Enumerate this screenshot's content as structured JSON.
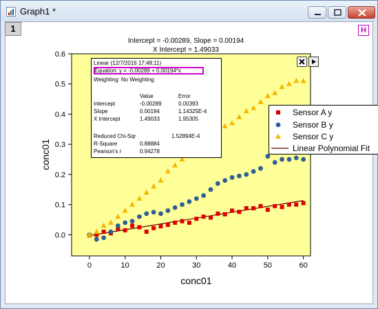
{
  "window": {
    "title": "Graph1 *",
    "layer_number": "1",
    "h_button": "H"
  },
  "stats_table": {
    "header": "Linear (12/7/2016 17:48:11)",
    "equation": "Equation: y = -0.00289 + 0.00194*x",
    "weighting": "Weighting: No Weighting",
    "columns": [
      "Value",
      "Error"
    ],
    "rows": [
      {
        "name": "Intercept",
        "value": "-0.00289",
        "error": "0.00393"
      },
      {
        "name": "Slope",
        "value": "0.00194",
        "error": "1.14325E-4"
      },
      {
        "name": "X Intercept",
        "value": "1.49033",
        "error": "1.95305"
      }
    ],
    "stats": [
      {
        "name": "Reduced Chi-Sqr",
        "value": "1.52894E-4"
      },
      {
        "name": "R-Square",
        "value": "0.88884"
      },
      {
        "name": "Pearson's r",
        "value": "0.94278"
      }
    ]
  },
  "legend": {
    "items": [
      "Sensor A y",
      "Sensor B y",
      "Sensor C y",
      "Linear Polynomial Fit"
    ]
  },
  "colors": {
    "plot_bg": "#ffff99",
    "sensor_a": "#dd0000",
    "sensor_b": "#2e5e96",
    "sensor_c": "#f5b800",
    "fit_line": "#660000"
  },
  "chart_data": {
    "type": "scatter",
    "title": "Intercept = -0.00289, Slope = 0.00194",
    "subtitle": "X Intercept = 1.49033",
    "xlabel": "conc01",
    "ylabel": "conc01",
    "xlim": [
      -5,
      62
    ],
    "ylim": [
      -0.07,
      0.6
    ],
    "xticks": [
      0,
      10,
      20,
      30,
      40,
      50,
      60
    ],
    "yticks": [
      0.0,
      0.1,
      0.2,
      0.3,
      0.4,
      0.5,
      0.6
    ],
    "ytick_labels": [
      "0.0",
      "0.1",
      "0.2",
      "0.3",
      "0.4",
      "0.5",
      "0.6"
    ],
    "grid": false,
    "legend_position": "right",
    "series": [
      {
        "name": "Sensor A y",
        "marker": "square",
        "x": [
          0,
          2,
          4,
          6,
          8,
          10,
          12,
          14,
          16,
          18,
          20,
          22,
          24,
          26,
          28,
          30,
          32,
          34,
          36,
          38,
          40,
          42,
          44,
          46,
          48,
          50,
          52,
          54,
          56,
          58,
          60
        ],
        "y": [
          -0.002,
          0.0,
          0.01,
          0.005,
          0.02,
          0.015,
          0.03,
          0.025,
          0.01,
          0.022,
          0.028,
          0.033,
          0.04,
          0.045,
          0.04,
          0.053,
          0.06,
          0.057,
          0.07,
          0.068,
          0.08,
          0.076,
          0.088,
          0.088,
          0.095,
          0.083,
          0.095,
          0.092,
          0.1,
          0.1,
          0.105
        ]
      },
      {
        "name": "Sensor B y",
        "marker": "circle",
        "x": [
          0,
          2,
          4,
          6,
          8,
          10,
          12,
          14,
          16,
          18,
          20,
          22,
          24,
          26,
          28,
          30,
          32,
          34,
          36,
          38,
          40,
          42,
          44,
          46,
          48,
          50,
          52,
          54,
          56,
          58,
          60
        ],
        "y": [
          0.0,
          -0.015,
          -0.01,
          0.01,
          0.03,
          0.04,
          0.045,
          0.06,
          0.07,
          0.075,
          0.07,
          0.08,
          0.09,
          0.1,
          0.11,
          0.12,
          0.13,
          0.15,
          0.17,
          0.18,
          0.19,
          0.195,
          0.2,
          0.21,
          0.22,
          0.26,
          0.24,
          0.25,
          0.25,
          0.255,
          0.25
        ]
      },
      {
        "name": "Sensor C y",
        "marker": "triangle",
        "x": [
          0,
          2,
          4,
          6,
          8,
          10,
          12,
          14,
          16,
          18,
          20,
          22,
          24,
          26,
          28,
          30,
          32,
          34,
          36,
          38,
          40,
          42,
          44,
          46,
          48,
          50,
          52,
          54,
          56,
          58,
          60
        ],
        "y": [
          0.0,
          0.01,
          0.03,
          0.04,
          0.06,
          0.08,
          0.1,
          0.12,
          0.14,
          0.16,
          0.18,
          0.21,
          0.23,
          0.25,
          0.27,
          0.28,
          0.3,
          0.32,
          0.33,
          0.36,
          0.37,
          0.39,
          0.41,
          0.42,
          0.44,
          0.46,
          0.47,
          0.49,
          0.5,
          0.51,
          0.51
        ]
      },
      {
        "name": "Linear Polynomial Fit",
        "type": "line",
        "x": [
          0,
          60
        ],
        "y": [
          -0.00289,
          0.11351
        ]
      }
    ]
  }
}
